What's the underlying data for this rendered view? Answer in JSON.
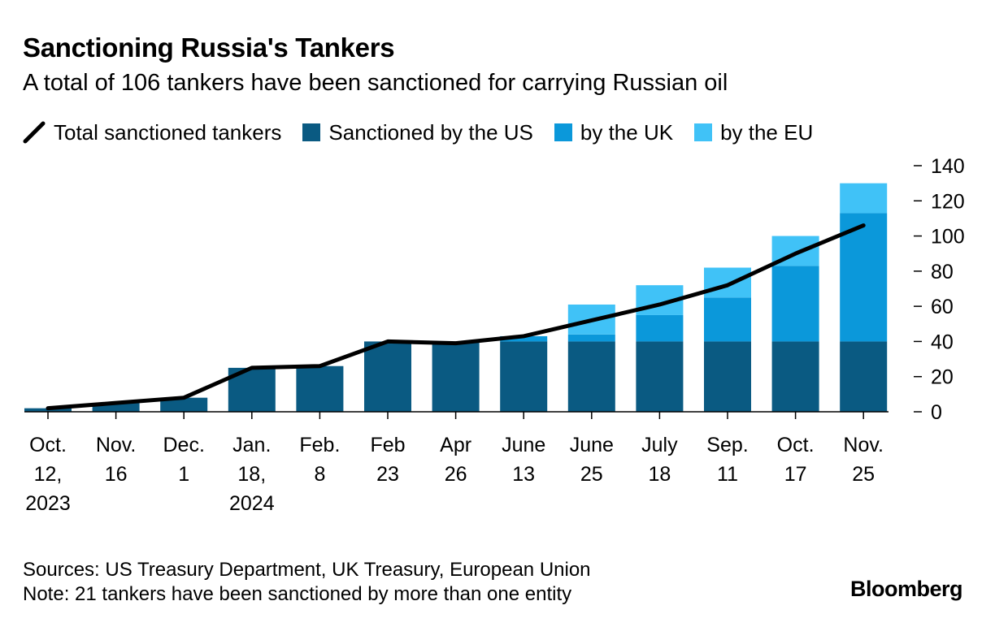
{
  "title": "Sanctioning Russia's Tankers",
  "subtitle": "A total of 106 tankers have been sanctioned for carrying Russian oil",
  "legend": {
    "total": "Total sanctioned tankers",
    "us": "Sanctioned by the US",
    "uk": "by the UK",
    "eu": "by the EU"
  },
  "colors": {
    "us": "#0a5a82",
    "uk": "#0b98da",
    "eu": "#40c2f7",
    "line": "#000000"
  },
  "source": "Sources: US Treasury Department, UK Treasury, European Union",
  "note": "Note: 21 tankers have been sanctioned by more than one entity",
  "brand": "Bloomberg",
  "chart_data": {
    "type": "bar",
    "stacked": true,
    "categories": [
      [
        "Oct.",
        "12,",
        "2023"
      ],
      [
        "Nov.",
        "16"
      ],
      [
        "Dec.",
        "1"
      ],
      [
        "Jan.",
        "18,",
        "2024"
      ],
      [
        "Feb.",
        "8"
      ],
      [
        "Feb",
        "23"
      ],
      [
        "Apr",
        "26"
      ],
      [
        "June",
        "13"
      ],
      [
        "June",
        "25"
      ],
      [
        "July",
        "18"
      ],
      [
        "Sep.",
        "11"
      ],
      [
        "Oct.",
        "17"
      ],
      [
        "Nov.",
        "25"
      ]
    ],
    "series": [
      {
        "name": "Sanctioned by the US",
        "key": "us",
        "values": [
          2,
          5,
          8,
          25,
          26,
          40,
          40,
          40,
          40,
          40,
          40,
          40,
          40
        ]
      },
      {
        "name": "by the UK",
        "key": "uk",
        "values": [
          0,
          0,
          0,
          0,
          0,
          0,
          0,
          3,
          4,
          15,
          25,
          43,
          73
        ]
      },
      {
        "name": "by the EU",
        "key": "eu",
        "values": [
          0,
          0,
          0,
          0,
          0,
          0,
          0,
          0,
          17,
          17,
          17,
          17,
          17
        ]
      }
    ],
    "line": {
      "name": "Total sanctioned tankers",
      "values": [
        2,
        5,
        8,
        25,
        26,
        40,
        39,
        43,
        52,
        61,
        72,
        90,
        106
      ]
    },
    "yticks": [
      0,
      20,
      40,
      60,
      80,
      100,
      120,
      140
    ],
    "ylim": [
      0,
      140
    ],
    "grid": false,
    "y_axis_side": "right",
    "legend_position": "top"
  }
}
